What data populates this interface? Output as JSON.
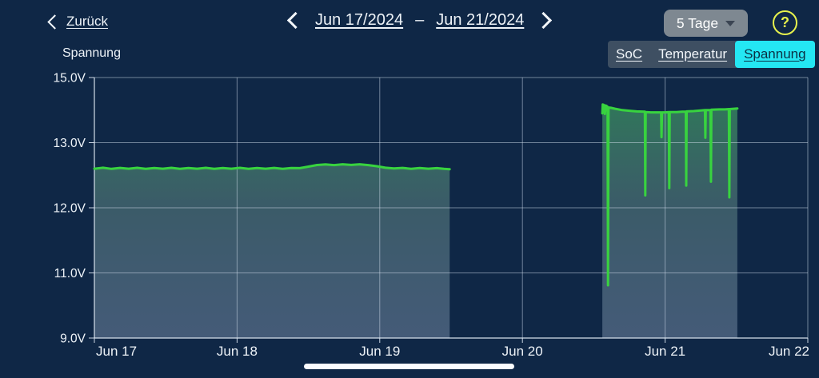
{
  "header": {
    "back_label": "Zurück",
    "date_start": "Jun 17/2024",
    "date_separator": "–",
    "date_end": "Jun 21/2024",
    "range_button": "5 Tage",
    "help_symbol": "?"
  },
  "chart_header": {
    "title": "Spannung",
    "tabs": [
      {
        "label": "SoC",
        "selected": false
      },
      {
        "label": "Temperatur",
        "selected": false
      },
      {
        "label": "Spannung",
        "selected": true
      }
    ]
  },
  "colors": {
    "background": "#0f2746",
    "accent_cyan": "#24e7f3",
    "selected_tab_text": "#0b3044",
    "tabbar_background": "#3e4f62",
    "range_button_gray": "#7e8891",
    "help_yellow": "#e7f24d",
    "line_green": "#38d33f",
    "text": "#eef3f8"
  },
  "chart_data": {
    "type": "area",
    "title": "Spannung",
    "unit": "V",
    "grid": true,
    "line_color": "#38d33f",
    "y_axis": {
      "tick_labels": [
        "15.0V",
        "13.0V",
        "12.0V",
        "11.0V",
        "9.0V"
      ],
      "tick_values": [
        15.0,
        13.0,
        12.0,
        11.0,
        9.0
      ],
      "note": "ticks evenly spaced on screen (non-linear scale)"
    },
    "x_axis": {
      "tick_labels": [
        "Jun 17",
        "Jun 18",
        "Jun 19",
        "Jun 20",
        "Jun 21",
        "Jun 22"
      ],
      "span_days": 5
    },
    "series": [
      {
        "name": "Spannung",
        "segments": [
          [
            [
              0.0,
              12.6
            ],
            [
              0.06,
              12.615
            ],
            [
              0.12,
              12.598
            ],
            [
              0.18,
              12.612
            ],
            [
              0.24,
              12.6
            ],
            [
              0.3,
              12.613
            ],
            [
              0.36,
              12.598
            ],
            [
              0.42,
              12.611
            ],
            [
              0.48,
              12.6
            ],
            [
              0.54,
              12.614
            ],
            [
              0.6,
              12.599
            ],
            [
              0.66,
              12.611
            ],
            [
              0.72,
              12.6
            ],
            [
              0.78,
              12.613
            ],
            [
              0.84,
              12.599
            ],
            [
              0.9,
              12.61
            ],
            [
              0.96,
              12.6
            ],
            [
              1.02,
              12.613
            ],
            [
              1.08,
              12.598
            ],
            [
              1.14,
              12.611
            ],
            [
              1.2,
              12.6
            ],
            [
              1.26,
              12.612
            ],
            [
              1.32,
              12.599
            ],
            [
              1.38,
              12.61
            ],
            [
              1.44,
              12.608
            ],
            [
              1.5,
              12.632
            ],
            [
              1.56,
              12.656
            ],
            [
              1.62,
              12.665
            ],
            [
              1.68,
              12.655
            ],
            [
              1.74,
              12.668
            ],
            [
              1.8,
              12.658
            ],
            [
              1.86,
              12.667
            ],
            [
              1.92,
              12.655
            ],
            [
              1.98,
              12.638
            ],
            [
              2.04,
              12.615
            ],
            [
              2.1,
              12.604
            ],
            [
              2.16,
              12.612
            ],
            [
              2.22,
              12.599
            ],
            [
              2.28,
              12.61
            ],
            [
              2.34,
              12.6
            ],
            [
              2.4,
              12.609
            ],
            [
              2.45,
              12.598
            ],
            [
              2.49,
              12.592
            ]
          ],
          [
            [
              3.56,
              13.9
            ],
            [
              3.563,
              14.17
            ],
            [
              3.57,
              14.16
            ],
            [
              3.578,
              13.88
            ],
            [
              3.584,
              14.14
            ],
            [
              3.592,
              14.12
            ],
            [
              3.597,
              14.1
            ],
            [
              3.6,
              10.62
            ],
            [
              3.603,
              14.08
            ],
            [
              3.62,
              14.07
            ],
            [
              3.65,
              14.04
            ],
            [
              3.7,
              14.0
            ],
            [
              3.75,
              13.98
            ],
            [
              3.8,
              13.96
            ],
            [
              3.858,
              13.95
            ],
            [
              3.861,
              12.19
            ],
            [
              3.864,
              13.94
            ],
            [
              3.9,
              13.93
            ],
            [
              3.94,
              13.93
            ],
            [
              3.972,
              13.93
            ],
            [
              3.975,
              13.17
            ],
            [
              3.978,
              13.93
            ],
            [
              4.0,
              13.93
            ],
            [
              4.026,
              13.94
            ],
            [
              4.029,
              12.3
            ],
            [
              4.032,
              13.94
            ],
            [
              4.08,
              13.94
            ],
            [
              4.12,
              13.95
            ],
            [
              4.145,
              13.95
            ],
            [
              4.148,
              12.34
            ],
            [
              4.151,
              13.96
            ],
            [
              4.2,
              13.97
            ],
            [
              4.25,
              13.99
            ],
            [
              4.279,
              14.0
            ],
            [
              4.282,
              13.15
            ],
            [
              4.285,
              14.0
            ],
            [
              4.318,
              14.0
            ],
            [
              4.321,
              12.4
            ],
            [
              4.324,
              14.01
            ],
            [
              4.38,
              14.02
            ],
            [
              4.42,
              14.02
            ],
            [
              4.447,
              14.03
            ],
            [
              4.45,
              12.16
            ],
            [
              4.453,
              14.03
            ],
            [
              4.48,
              14.04
            ],
            [
              4.506,
              14.05
            ]
          ]
        ]
      }
    ]
  }
}
